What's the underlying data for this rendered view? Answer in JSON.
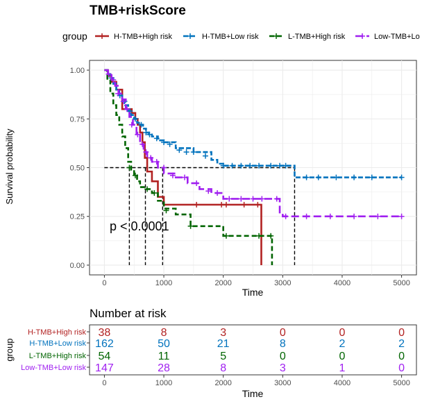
{
  "colors": {
    "h_tmb_high": "#B22222",
    "h_tmb_low": "#0072BD",
    "l_tmb_high": "#006400",
    "l_tmb_low": "#A020F0",
    "grid": "#ebebeb",
    "median_line": "#000000"
  },
  "legend": {
    "title": "group",
    "items": [
      "H-TMB+High risk",
      "H-TMB+Low risk",
      "L-TMB+High risk",
      "Low-TMB+Lo"
    ]
  },
  "pvalue": "p < 0.0001",
  "risk_table": {
    "title": "Number at risk",
    "ylabel": "group",
    "xlabel": "Time",
    "row_labels": [
      "H-TMB+High risk",
      "H-TMB+Low risk",
      "L-TMB+High risk",
      "Low-TMB+Low risk"
    ],
    "rows": [
      [
        "38",
        "8",
        "3",
        "0",
        "0",
        "0"
      ],
      [
        "162",
        "50",
        "21",
        "8",
        "2",
        "2"
      ],
      [
        "54",
        "11",
        "5",
        "0",
        "0",
        "0"
      ],
      [
        "147",
        "28",
        "8",
        "3",
        "1",
        "0"
      ]
    ]
  },
  "chart_data": {
    "type": "line",
    "title": "TMB+riskScore",
    "xlabel": "Time",
    "ylabel": "Survival probability",
    "xlim": [
      -250,
      5250
    ],
    "ylim": [
      -0.05,
      1.05
    ],
    "x_ticks": [
      0,
      1000,
      2000,
      3000,
      4000,
      5000
    ],
    "y_ticks": [
      0,
      0.25,
      0.5,
      0.75,
      1
    ],
    "y_tick_labels": [
      "0.00",
      "0.25",
      "0.50",
      "0.75",
      "1.00"
    ],
    "grid": true,
    "legend_position": "top",
    "median_survival": [
      {
        "series": "H-TMB+High risk",
        "x": 690
      },
      {
        "series": "H-TMB+Low risk",
        "x": 3200
      },
      {
        "series": "L-TMB+High risk",
        "x": 420
      },
      {
        "series": "Low-TMB+Low risk",
        "x": 980
      }
    ],
    "series": [
      {
        "name": "H-TMB+High risk",
        "dash": "solid",
        "x": [
          0,
          60,
          120,
          200,
          300,
          400,
          460,
          520,
          560,
          600,
          640,
          680,
          720,
          800,
          900,
          1000,
          1500,
          2000,
          2640
        ],
        "y": [
          1.0,
          0.97,
          0.94,
          0.9,
          0.8,
          0.8,
          0.78,
          0.75,
          0.72,
          0.68,
          0.63,
          0.55,
          0.48,
          0.43,
          0.35,
          0.31,
          0.31,
          0.31,
          0.0
        ],
        "censor_x": [
          1550,
          1970,
          2050,
          2350,
          2580
        ],
        "censor_y": [
          0.31,
          0.31,
          0.31,
          0.31,
          0.31
        ]
      },
      {
        "name": "H-TMB+Low risk",
        "dash": "long",
        "x": [
          0,
          50,
          100,
          150,
          200,
          250,
          300,
          350,
          400,
          450,
          500,
          550,
          600,
          650,
          700,
          750,
          800,
          900,
          1000,
          1200,
          1500,
          1800,
          1900,
          2000,
          2500,
          3200,
          4000,
          5000
        ],
        "y": [
          1.0,
          0.98,
          0.96,
          0.93,
          0.9,
          0.87,
          0.84,
          0.82,
          0.79,
          0.77,
          0.75,
          0.73,
          0.72,
          0.7,
          0.68,
          0.67,
          0.66,
          0.64,
          0.63,
          0.6,
          0.58,
          0.54,
          0.52,
          0.51,
          0.51,
          0.45,
          0.45,
          0.45
        ],
        "censor_x": [
          120,
          260,
          340,
          430,
          520,
          620,
          700,
          760,
          880,
          1000,
          1100,
          1260,
          1380,
          1500,
          1700,
          2000,
          2150,
          2300,
          2450,
          2600,
          2800,
          2950,
          3050,
          3400,
          3600,
          3900,
          4200,
          4500,
          5000
        ],
        "censor_y": [
          0.96,
          0.87,
          0.84,
          0.79,
          0.75,
          0.72,
          0.68,
          0.67,
          0.65,
          0.63,
          0.62,
          0.59,
          0.58,
          0.58,
          0.56,
          0.51,
          0.51,
          0.51,
          0.51,
          0.51,
          0.51,
          0.51,
          0.51,
          0.45,
          0.45,
          0.45,
          0.45,
          0.45,
          0.45
        ]
      },
      {
        "name": "L-TMB+High risk",
        "dash": "dashed",
        "x": [
          0,
          50,
          100,
          150,
          200,
          250,
          300,
          350,
          400,
          450,
          500,
          550,
          600,
          700,
          800,
          900,
          1000,
          1200,
          1450,
          2000,
          2500,
          2820
        ],
        "y": [
          1.0,
          0.95,
          0.88,
          0.82,
          0.77,
          0.72,
          0.66,
          0.6,
          0.53,
          0.49,
          0.46,
          0.43,
          0.4,
          0.39,
          0.37,
          0.33,
          0.29,
          0.26,
          0.2,
          0.15,
          0.15,
          0.0
        ],
        "censor_x": [
          420,
          520,
          720,
          840,
          1040,
          1450,
          2050,
          2600,
          2800
        ],
        "censor_y": [
          0.5,
          0.46,
          0.39,
          0.37,
          0.28,
          0.2,
          0.15,
          0.15,
          0.15
        ]
      },
      {
        "name": "Low-TMB+Low risk",
        "dash": "longdash",
        "x": [
          0,
          60,
          120,
          180,
          240,
          300,
          360,
          420,
          480,
          540,
          600,
          660,
          720,
          800,
          900,
          1000,
          1200,
          1400,
          1600,
          1800,
          2000,
          2500,
          2950,
          3000,
          3500,
          5000
        ],
        "y": [
          1.0,
          0.98,
          0.95,
          0.92,
          0.88,
          0.85,
          0.8,
          0.76,
          0.72,
          0.67,
          0.62,
          0.58,
          0.55,
          0.53,
          0.5,
          0.47,
          0.45,
          0.42,
          0.39,
          0.37,
          0.34,
          0.34,
          0.27,
          0.25,
          0.25,
          0.25
        ],
        "censor_x": [
          70,
          150,
          230,
          320,
          380,
          460,
          560,
          640,
          700,
          780,
          880,
          1000,
          1150,
          1350,
          1550,
          1750,
          1900,
          2100,
          2300,
          2500,
          2650,
          2900,
          3050,
          3400,
          3800,
          4200,
          4600,
          5000
        ],
        "censor_y": [
          0.98,
          0.95,
          0.88,
          0.84,
          0.8,
          0.72,
          0.67,
          0.62,
          0.58,
          0.55,
          0.53,
          0.5,
          0.46,
          0.45,
          0.42,
          0.38,
          0.37,
          0.34,
          0.34,
          0.34,
          0.34,
          0.34,
          0.25,
          0.25,
          0.25,
          0.25,
          0.25,
          0.25
        ]
      }
    ]
  }
}
